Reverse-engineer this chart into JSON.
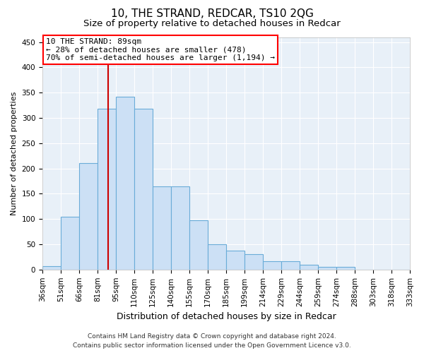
{
  "title": "10, THE STRAND, REDCAR, TS10 2QG",
  "subtitle": "Size of property relative to detached houses in Redcar",
  "xlabel": "Distribution of detached houses by size in Redcar",
  "ylabel": "Number of detached properties",
  "categories": [
    "36sqm",
    "51sqm",
    "66sqm",
    "81sqm",
    "95sqm",
    "110sqm",
    "125sqm",
    "140sqm",
    "155sqm",
    "170sqm",
    "185sqm",
    "199sqm",
    "214sqm",
    "229sqm",
    "244sqm",
    "259sqm",
    "274sqm",
    "288sqm",
    "303sqm",
    "318sqm",
    "333sqm"
  ],
  "values": [
    7,
    105,
    210,
    318,
    342,
    318,
    165,
    165,
    98,
    50,
    37,
    30,
    17,
    17,
    10,
    5,
    5,
    0,
    0,
    0
  ],
  "bar_color": "#cce0f5",
  "bar_edge_color": "#6aacd8",
  "background_color": "#e8f0f8",
  "annotation_line1": "10 THE STRAND: 89sqm",
  "annotation_line2": "← 28% of detached houses are smaller (478)",
  "annotation_line3": "70% of semi-detached houses are larger (1,194) →",
  "vline_color": "#cc0000",
  "vline_x_idx": 3.57,
  "ylim": [
    0,
    460
  ],
  "yticks": [
    0,
    50,
    100,
    150,
    200,
    250,
    300,
    350,
    400,
    450
  ],
  "footer_line1": "Contains HM Land Registry data © Crown copyright and database right 2024.",
  "footer_line2": "Contains public sector information licensed under the Open Government Licence v3.0.",
  "title_fontsize": 11,
  "subtitle_fontsize": 9.5,
  "xlabel_fontsize": 9,
  "ylabel_fontsize": 8,
  "tick_fontsize": 7.5,
  "annotation_fontsize": 8,
  "footer_fontsize": 6.5
}
